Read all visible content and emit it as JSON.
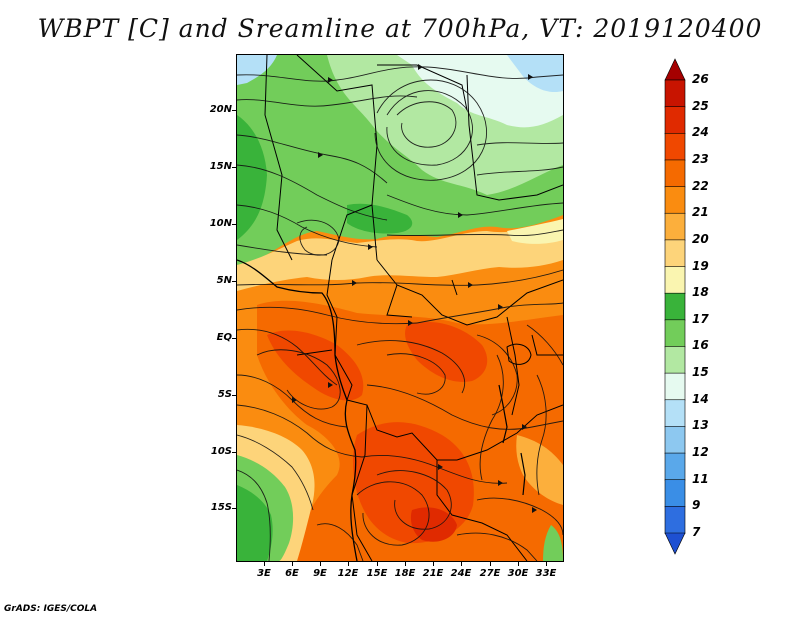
{
  "title": "WBPT [C] and Sreamline at 700hPa, VT: 2019120400",
  "credit": "GrADS: IGES/COLA",
  "map": {
    "field": "WBPT [C]",
    "level": "700hPa",
    "valid_time": "2019120400",
    "lat_ticks": [
      "20N",
      "15N",
      "10N",
      "5N",
      "EQ",
      "5S",
      "10S",
      "15S"
    ],
    "lon_ticks": [
      "3E",
      "6E",
      "9E",
      "12E",
      "15E",
      "18E",
      "21E",
      "24E",
      "27E",
      "30E",
      "33E"
    ]
  },
  "colorbar": {
    "labels": [
      "26",
      "25",
      "24",
      "23",
      "22",
      "21",
      "20",
      "19",
      "18",
      "17",
      "16",
      "15",
      "14",
      "13",
      "12",
      "11",
      "9",
      "7"
    ],
    "colors": [
      "#a50000",
      "#c81400",
      "#e02a00",
      "#f04800",
      "#f56a00",
      "#fa8c10",
      "#fcaf3c",
      "#fdd47a",
      "#faf5b0",
      "#39b33a",
      "#72cd5a",
      "#b2e8a2",
      "#e6faf0",
      "#b4e0f7",
      "#8dc8f0",
      "#5aa8ea",
      "#3a8ee6",
      "#2e6ee0",
      "#1e50d2"
    ]
  },
  "icons": {
    "colorbar_top_arrow": "triangle-up-icon",
    "colorbar_bottom_arrow": "triangle-down-icon"
  }
}
